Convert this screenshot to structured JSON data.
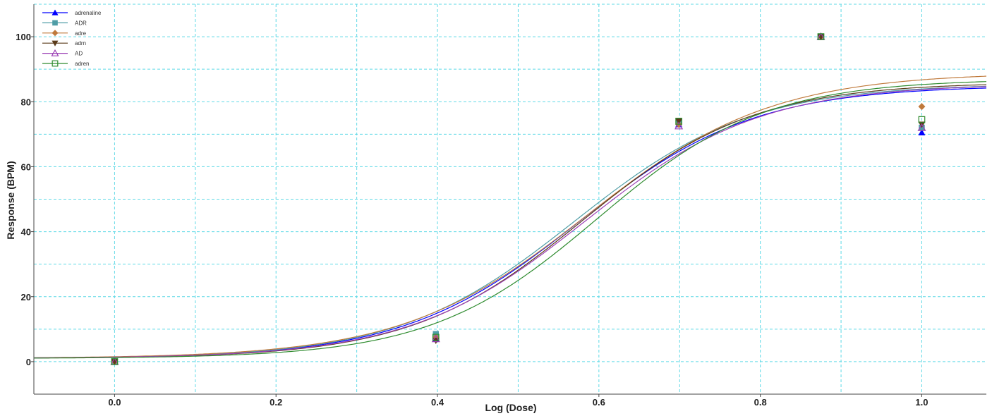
{
  "chart_data": {
    "type": "scatter",
    "xlabel": "Log (Dose)",
    "ylabel": "Response (BPM)",
    "xlim": [
      -0.1,
      1.08
    ],
    "ylim": [
      -10,
      110
    ],
    "xticks": [
      0.0,
      0.2,
      0.4,
      0.6,
      0.8,
      1.0
    ],
    "xtick_labels": [
      "0.0",
      "0.2",
      "0.4",
      "0.6",
      "0.8",
      "1.0"
    ],
    "yticks": [
      0,
      20,
      40,
      60,
      80,
      100
    ],
    "ytick_labels": [
      "0",
      "20",
      "40",
      "60",
      "80",
      "100"
    ],
    "grid": true,
    "legend_position": "top-left",
    "series": [
      {
        "name": "adrenaline",
        "color": "#0000ff",
        "marker": "triangle-up-filled",
        "points": [
          [
            0.0,
            0
          ],
          [
            0.398,
            7
          ],
          [
            0.699,
            73
          ],
          [
            0.875,
            100
          ],
          [
            1.0,
            70.5
          ]
        ],
        "curve": {
          "bottom": 1,
          "top": 85,
          "logEC50": 0.575,
          "hill": 4.0
        }
      },
      {
        "name": "ADR",
        "color": "#4f9da6",
        "marker": "square-filled",
        "points": [
          [
            0.0,
            0
          ],
          [
            0.398,
            8.5
          ],
          [
            0.699,
            73.5
          ],
          [
            0.875,
            100
          ],
          [
            1.0,
            72
          ]
        ],
        "curve": {
          "bottom": 1,
          "top": 85.5,
          "logEC50": 0.57,
          "hill": 4.0
        }
      },
      {
        "name": "adre",
        "color": "#c07a3c",
        "marker": "diamond-filled",
        "points": [
          [
            0.0,
            0
          ],
          [
            0.398,
            7.5
          ],
          [
            0.699,
            73
          ],
          [
            0.875,
            100
          ],
          [
            1.0,
            78.5
          ]
        ],
        "curve": {
          "bottom": 1,
          "top": 89,
          "logEC50": 0.585,
          "hill": 3.8
        }
      },
      {
        "name": "adrn",
        "color": "#5a3a1a",
        "marker": "triangle-down-filled",
        "points": [
          [
            0.0,
            0
          ],
          [
            0.398,
            6.5
          ],
          [
            0.699,
            74
          ],
          [
            0.875,
            100
          ],
          [
            1.0,
            73
          ]
        ],
        "curve": {
          "bottom": 1,
          "top": 86,
          "logEC50": 0.58,
          "hill": 4.1
        }
      },
      {
        "name": "AD",
        "color": "#9b3fb5",
        "marker": "triangle-up-open",
        "points": [
          [
            0.0,
            0
          ],
          [
            0.398,
            7
          ],
          [
            0.699,
            72.5
          ],
          [
            0.875,
            100
          ],
          [
            1.0,
            72
          ]
        ],
        "curve": {
          "bottom": 1,
          "top": 85.5,
          "logEC50": 0.583,
          "hill": 4.0
        }
      },
      {
        "name": "adren",
        "color": "#2e8b2e",
        "marker": "square-open",
        "points": [
          [
            0.0,
            0
          ],
          [
            0.398,
            7.5
          ],
          [
            0.699,
            74
          ],
          [
            0.875,
            100
          ],
          [
            1.0,
            74.5
          ]
        ],
        "curve": {
          "bottom": 1,
          "top": 87,
          "logEC50": 0.598,
          "hill": 4.2
        }
      }
    ]
  }
}
